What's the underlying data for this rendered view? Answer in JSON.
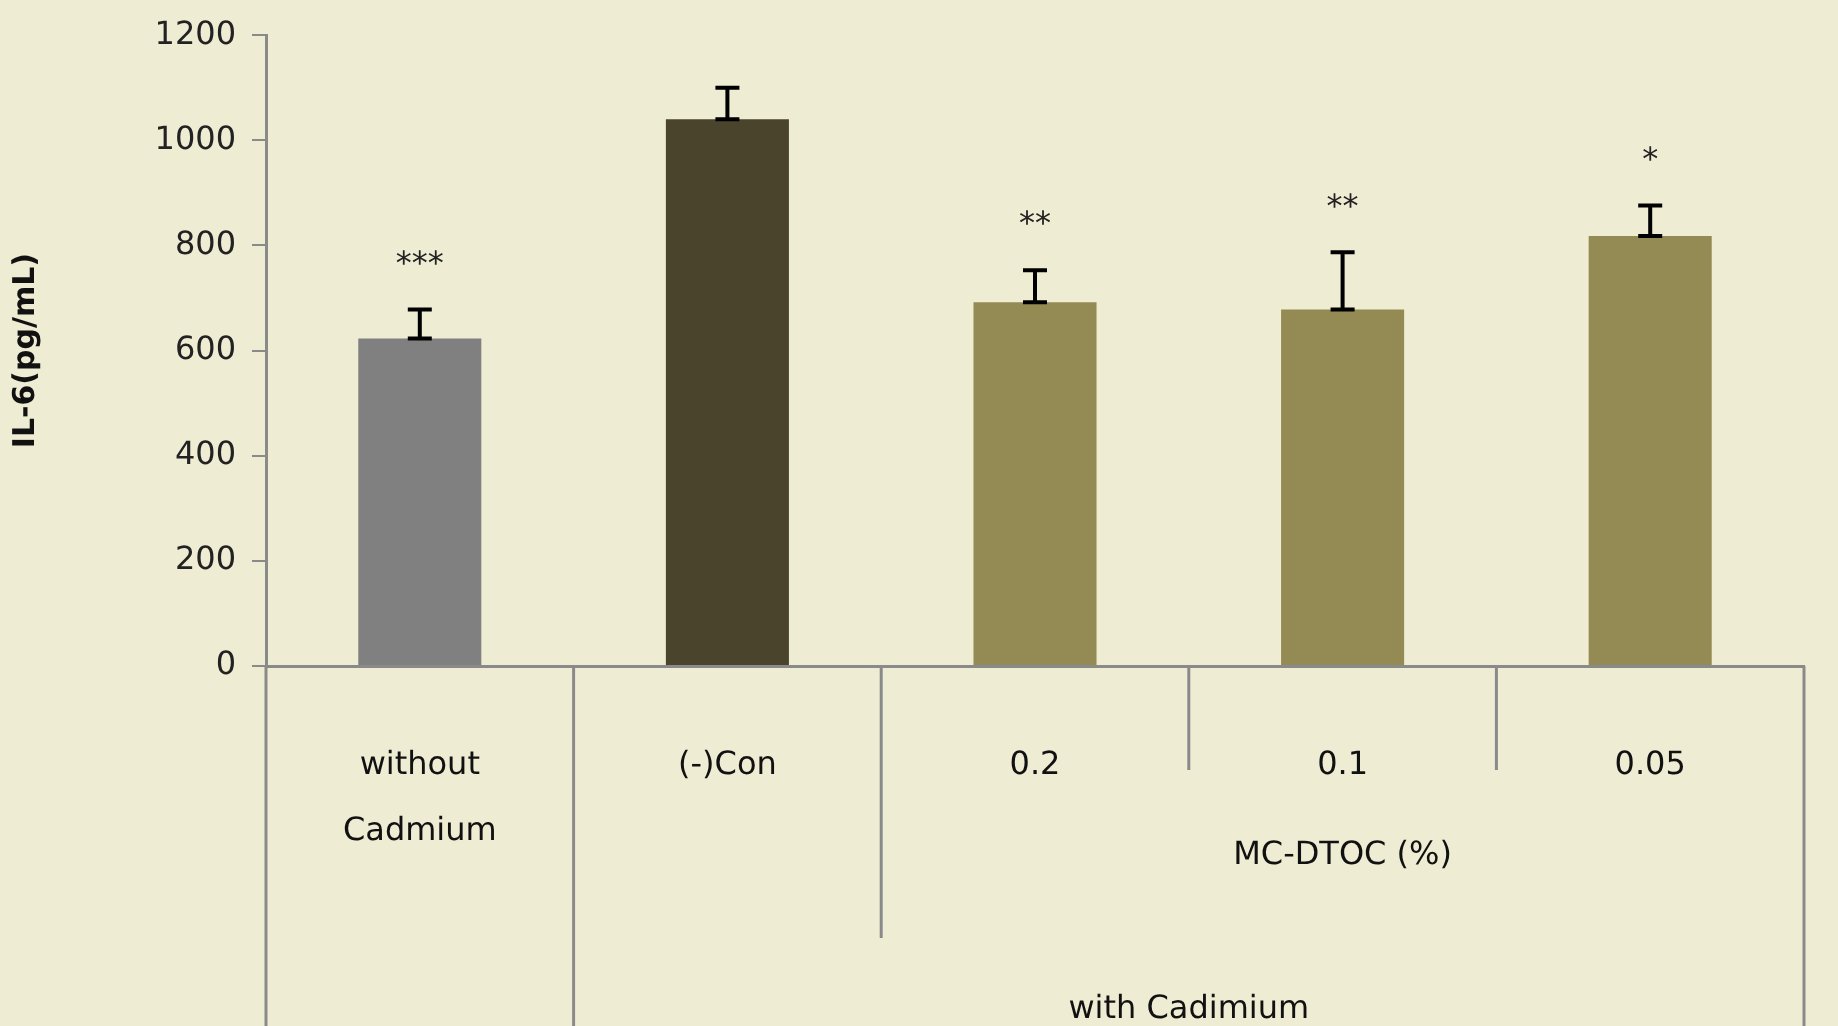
{
  "chart_data": {
    "type": "bar",
    "ylabel": "IL-6(pg/mL)",
    "categories": [
      "without Cadmium",
      "(-)Con",
      "0.2",
      "0.1",
      "0.05"
    ],
    "values": [
      623,
      1040,
      692,
      678,
      818
    ],
    "colors": [
      "#808080",
      "#4a442d",
      "#948a54",
      "#948a54",
      "#948a54"
    ],
    "errors": [
      [
        623,
        678
      ],
      [
        1040,
        1100
      ],
      [
        692,
        753
      ],
      [
        678,
        787
      ],
      [
        818,
        876
      ]
    ],
    "ylim": [
      0,
      1200
    ],
    "yticks": [
      0,
      200,
      400,
      600,
      800,
      1000,
      1200
    ],
    "grid": false,
    "annotations": [
      {
        "text": "***",
        "x": "without Cadmium",
        "y": 678
      },
      {
        "text": "**",
        "x": "0.2",
        "y": 753
      },
      {
        "text": "**",
        "x": "0.1",
        "y": 787
      },
      {
        "text": "*",
        "x": "0.05",
        "y": 876
      },
      "MC-DTOC (%)",
      "with Cadimium"
    ]
  }
}
